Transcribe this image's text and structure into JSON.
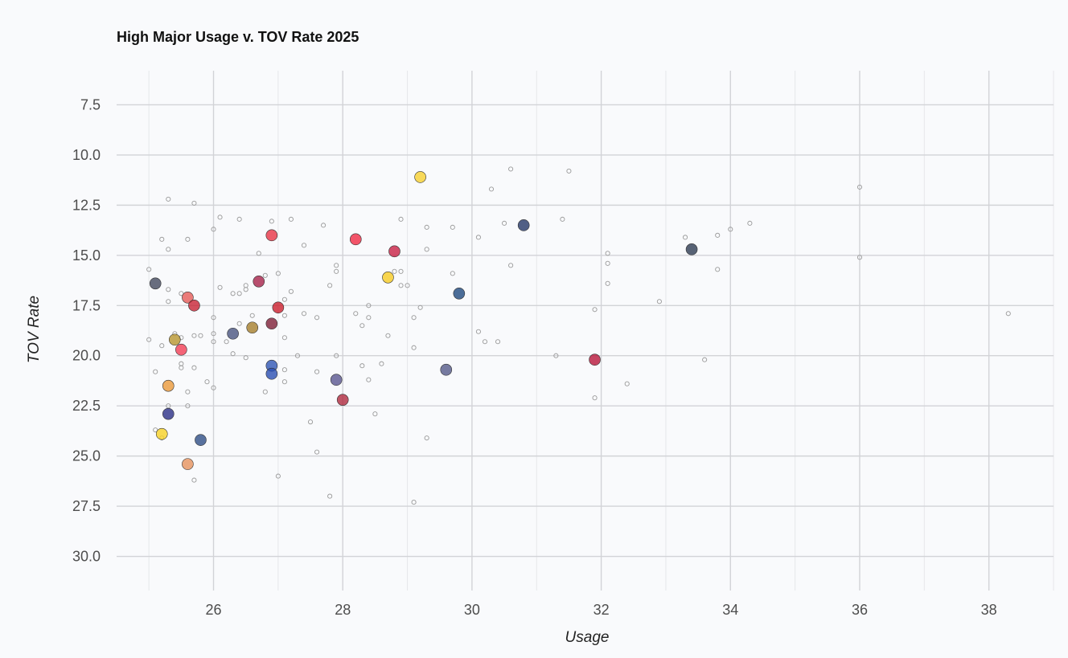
{
  "chart_data": {
    "type": "scatter",
    "title": "High Major Usage v. TOV Rate 2025",
    "xlabel": "Usage",
    "ylabel": "TOV Rate",
    "xlim": [
      24.5,
      39
    ],
    "ylim": [
      5.8,
      31.7
    ],
    "y_reversed": true,
    "x_ticks": [
      26,
      28,
      30,
      32,
      34,
      36,
      38
    ],
    "y_ticks": [
      7.5,
      10.0,
      12.5,
      15.0,
      17.5,
      20.0,
      22.5,
      25.0,
      27.5,
      30.0
    ],
    "grid": true,
    "legend": "none",
    "highlighted_points": [
      {
        "x": 25.1,
        "y": 16.4,
        "color": "#444a5e"
      },
      {
        "x": 25.2,
        "y": 23.9,
        "color": "#f8d226"
      },
      {
        "x": 25.3,
        "y": 21.5,
        "color": "#eb9a3a"
      },
      {
        "x": 25.3,
        "y": 22.9,
        "color": "#2c2f86"
      },
      {
        "x": 25.4,
        "y": 19.2,
        "color": "#b8962e"
      },
      {
        "x": 25.5,
        "y": 19.7,
        "color": "#f23e55"
      },
      {
        "x": 25.6,
        "y": 17.1,
        "color": "#e65b57"
      },
      {
        "x": 25.6,
        "y": 25.4,
        "color": "#e6925c"
      },
      {
        "x": 25.7,
        "y": 17.5,
        "color": "#c82434"
      },
      {
        "x": 25.8,
        "y": 24.2,
        "color": "#2f4f86"
      },
      {
        "x": 26.3,
        "y": 18.9,
        "color": "#4a5580"
      },
      {
        "x": 26.6,
        "y": 18.6,
        "color": "#a67f2c"
      },
      {
        "x": 26.7,
        "y": 16.3,
        "color": "#a8234a"
      },
      {
        "x": 26.9,
        "y": 14.0,
        "color": "#e83545"
      },
      {
        "x": 26.9,
        "y": 18.4,
        "color": "#7e1f36"
      },
      {
        "x": 26.9,
        "y": 20.5,
        "color": "#2f56b4"
      },
      {
        "x": 26.9,
        "y": 20.9,
        "color": "#2a4fb2"
      },
      {
        "x": 27.0,
        "y": 17.6,
        "color": "#cc1f2d"
      },
      {
        "x": 27.9,
        "y": 21.2,
        "color": "#5a5690"
      },
      {
        "x": 28.0,
        "y": 22.2,
        "color": "#b02a3e"
      },
      {
        "x": 28.2,
        "y": 14.2,
        "color": "#f02a44"
      },
      {
        "x": 28.7,
        "y": 16.1,
        "color": "#f7cc22"
      },
      {
        "x": 28.8,
        "y": 14.8,
        "color": "#c82044"
      },
      {
        "x": 29.2,
        "y": 11.1,
        "color": "#f8d130"
      },
      {
        "x": 29.6,
        "y": 20.7,
        "color": "#555a88"
      },
      {
        "x": 29.8,
        "y": 16.9,
        "color": "#1f4a7e"
      },
      {
        "x": 30.8,
        "y": 13.5,
        "color": "#253866"
      },
      {
        "x": 31.9,
        "y": 20.2,
        "color": "#b8163a"
      },
      {
        "x": 33.4,
        "y": 14.7,
        "color": "#2e3c52"
      }
    ],
    "background_points": [
      {
        "x": 25.0,
        "y": 15.7
      },
      {
        "x": 25.0,
        "y": 19.2
      },
      {
        "x": 25.1,
        "y": 20.8
      },
      {
        "x": 25.1,
        "y": 23.7
      },
      {
        "x": 25.2,
        "y": 14.2
      },
      {
        "x": 25.2,
        "y": 19.5
      },
      {
        "x": 25.2,
        "y": 24.1
      },
      {
        "x": 25.3,
        "y": 12.2
      },
      {
        "x": 25.3,
        "y": 14.7
      },
      {
        "x": 25.3,
        "y": 16.7
      },
      {
        "x": 25.3,
        "y": 17.3
      },
      {
        "x": 25.3,
        "y": 22.5
      },
      {
        "x": 25.4,
        "y": 18.9
      },
      {
        "x": 25.5,
        "y": 16.9
      },
      {
        "x": 25.5,
        "y": 19.1
      },
      {
        "x": 25.5,
        "y": 20.4
      },
      {
        "x": 25.5,
        "y": 20.6
      },
      {
        "x": 25.6,
        "y": 14.2
      },
      {
        "x": 25.6,
        "y": 21.8
      },
      {
        "x": 25.6,
        "y": 22.5
      },
      {
        "x": 25.7,
        "y": 12.4
      },
      {
        "x": 25.7,
        "y": 19.0
      },
      {
        "x": 25.7,
        "y": 20.6
      },
      {
        "x": 25.7,
        "y": 26.2
      },
      {
        "x": 25.8,
        "y": 19.0
      },
      {
        "x": 25.9,
        "y": 21.3
      },
      {
        "x": 26.0,
        "y": 13.7
      },
      {
        "x": 26.0,
        "y": 18.1
      },
      {
        "x": 26.0,
        "y": 18.9
      },
      {
        "x": 26.0,
        "y": 19.3
      },
      {
        "x": 26.0,
        "y": 21.6
      },
      {
        "x": 26.1,
        "y": 13.1
      },
      {
        "x": 26.1,
        "y": 16.6
      },
      {
        "x": 26.2,
        "y": 19.3
      },
      {
        "x": 26.3,
        "y": 16.9
      },
      {
        "x": 26.3,
        "y": 19.9
      },
      {
        "x": 26.4,
        "y": 13.2
      },
      {
        "x": 26.4,
        "y": 16.9
      },
      {
        "x": 26.4,
        "y": 18.4
      },
      {
        "x": 26.5,
        "y": 16.5
      },
      {
        "x": 26.5,
        "y": 16.7
      },
      {
        "x": 26.5,
        "y": 20.1
      },
      {
        "x": 26.6,
        "y": 18.0
      },
      {
        "x": 26.7,
        "y": 14.9
      },
      {
        "x": 26.8,
        "y": 16.0
      },
      {
        "x": 26.8,
        "y": 21.8
      },
      {
        "x": 26.9,
        "y": 13.3
      },
      {
        "x": 27.0,
        "y": 15.9
      },
      {
        "x": 27.0,
        "y": 26.0
      },
      {
        "x": 27.1,
        "y": 17.2
      },
      {
        "x": 27.1,
        "y": 18.0
      },
      {
        "x": 27.1,
        "y": 19.1
      },
      {
        "x": 27.1,
        "y": 20.7
      },
      {
        "x": 27.1,
        "y": 21.3
      },
      {
        "x": 27.2,
        "y": 13.2
      },
      {
        "x": 27.2,
        "y": 16.8
      },
      {
        "x": 27.3,
        "y": 20.0
      },
      {
        "x": 27.4,
        "y": 14.5
      },
      {
        "x": 27.4,
        "y": 17.9
      },
      {
        "x": 27.5,
        "y": 23.3
      },
      {
        "x": 27.6,
        "y": 18.1
      },
      {
        "x": 27.6,
        "y": 20.8
      },
      {
        "x": 27.6,
        "y": 24.8
      },
      {
        "x": 27.7,
        "y": 13.5
      },
      {
        "x": 27.8,
        "y": 16.5
      },
      {
        "x": 27.8,
        "y": 27.0
      },
      {
        "x": 27.9,
        "y": 15.5
      },
      {
        "x": 27.9,
        "y": 15.8
      },
      {
        "x": 27.9,
        "y": 20.0
      },
      {
        "x": 28.2,
        "y": 17.9
      },
      {
        "x": 28.3,
        "y": 18.5
      },
      {
        "x": 28.3,
        "y": 20.5
      },
      {
        "x": 28.4,
        "y": 17.5
      },
      {
        "x": 28.4,
        "y": 18.1
      },
      {
        "x": 28.4,
        "y": 21.2
      },
      {
        "x": 28.5,
        "y": 22.9
      },
      {
        "x": 28.6,
        "y": 20.4
      },
      {
        "x": 28.7,
        "y": 19.0
      },
      {
        "x": 28.8,
        "y": 15.8
      },
      {
        "x": 28.9,
        "y": 13.2
      },
      {
        "x": 28.9,
        "y": 15.8
      },
      {
        "x": 28.9,
        "y": 16.5
      },
      {
        "x": 29.0,
        "y": 16.5
      },
      {
        "x": 29.1,
        "y": 18.1
      },
      {
        "x": 29.1,
        "y": 19.6
      },
      {
        "x": 29.1,
        "y": 27.3
      },
      {
        "x": 29.2,
        "y": 17.6
      },
      {
        "x": 29.3,
        "y": 13.6
      },
      {
        "x": 29.3,
        "y": 14.7
      },
      {
        "x": 29.3,
        "y": 24.1
      },
      {
        "x": 29.7,
        "y": 13.6
      },
      {
        "x": 29.7,
        "y": 15.9
      },
      {
        "x": 30.1,
        "y": 14.1
      },
      {
        "x": 30.1,
        "y": 18.8
      },
      {
        "x": 30.2,
        "y": 19.3
      },
      {
        "x": 30.3,
        "y": 11.7
      },
      {
        "x": 30.4,
        "y": 19.3
      },
      {
        "x": 30.5,
        "y": 13.4
      },
      {
        "x": 30.6,
        "y": 10.7
      },
      {
        "x": 30.6,
        "y": 15.5
      },
      {
        "x": 31.3,
        "y": 20.0
      },
      {
        "x": 31.4,
        "y": 13.2
      },
      {
        "x": 31.5,
        "y": 10.8
      },
      {
        "x": 31.9,
        "y": 17.7
      },
      {
        "x": 31.9,
        "y": 22.1
      },
      {
        "x": 32.1,
        "y": 14.9
      },
      {
        "x": 32.1,
        "y": 15.4
      },
      {
        "x": 32.1,
        "y": 16.4
      },
      {
        "x": 32.4,
        "y": 21.4
      },
      {
        "x": 32.9,
        "y": 17.3
      },
      {
        "x": 33.3,
        "y": 14.1
      },
      {
        "x": 33.6,
        "y": 20.2
      },
      {
        "x": 33.8,
        "y": 14.0
      },
      {
        "x": 33.8,
        "y": 15.7
      },
      {
        "x": 34.0,
        "y": 13.7
      },
      {
        "x": 34.3,
        "y": 13.4
      },
      {
        "x": 36.0,
        "y": 11.6
      },
      {
        "x": 36.0,
        "y": 15.1
      },
      {
        "x": 38.3,
        "y": 17.9
      }
    ]
  }
}
